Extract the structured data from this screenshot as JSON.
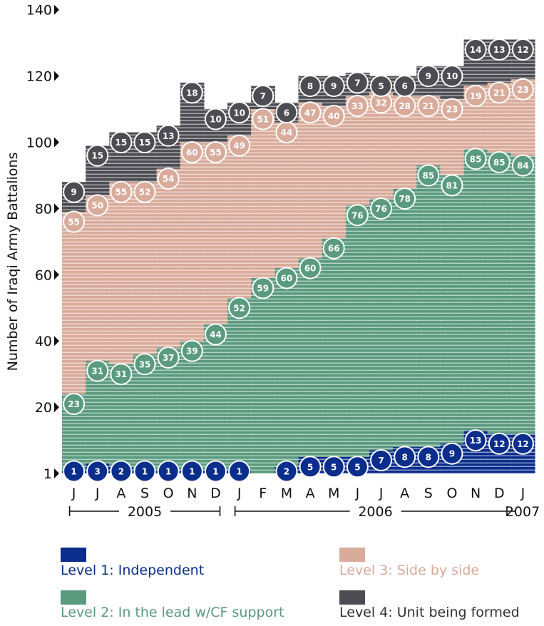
{
  "chart_data": {
    "type": "bar",
    "stacked": true,
    "title": "",
    "ylabel": "Number of Iraqi Army Battalions",
    "ylim": [
      0,
      140
    ],
    "yticks": [
      "1",
      "20",
      "40",
      "60",
      "80",
      "100",
      "120",
      "140"
    ],
    "categories": [
      "J",
      "J",
      "A",
      "S",
      "O",
      "N",
      "D",
      "J",
      "F",
      "M",
      "A",
      "M",
      "J",
      "J",
      "A",
      "S",
      "O",
      "N",
      "D",
      "J"
    ],
    "year_labels": [
      "2005",
      "2006",
      "2007"
    ],
    "series": [
      {
        "name": "Level 1: Independent",
        "color": "#0b2e8c",
        "values": [
          1,
          3,
          2,
          1,
          1,
          1,
          1,
          1,
          0,
          2,
          5,
          5,
          5,
          7,
          8,
          8,
          9,
          13,
          12,
          12
        ],
        "labels": [
          "1",
          "3",
          "2",
          "1",
          "1",
          "1",
          "1",
          "1",
          "",
          "2",
          "5",
          "5",
          "5",
          "7",
          "8",
          "8",
          "9",
          "13",
          "12",
          "12"
        ]
      },
      {
        "name": "Level 2: In the lead w/CF support",
        "color": "#5a9a7f",
        "values": [
          23,
          31,
          31,
          35,
          37,
          39,
          44,
          52,
          59,
          60,
          60,
          66,
          76,
          76,
          78,
          85,
          81,
          85,
          85,
          84
        ],
        "labels": [
          "23",
          "31",
          "31",
          "35",
          "37",
          "39",
          "44",
          "52",
          "59",
          "60",
          "60",
          "66",
          "76",
          "76",
          "78",
          "85",
          "81",
          "85",
          "85",
          "84"
        ]
      },
      {
        "name": "Level 3: Side by side",
        "color": "#d9ab9b",
        "values": [
          55,
          50,
          55,
          52,
          54,
          60,
          55,
          49,
          51,
          44,
          47,
          40,
          33,
          32,
          28,
          21,
          23,
          19,
          21,
          23
        ],
        "labels": [
          "55",
          "50",
          "55",
          "52",
          "54",
          "60",
          "55",
          "49",
          "51",
          "44",
          "47",
          "40",
          "33",
          "32",
          "28",
          "21",
          "23",
          "19",
          "21",
          "23"
        ]
      },
      {
        "name": "Level 4: Unit being formed",
        "color": "#4c4c52",
        "values": [
          9,
          15,
          15,
          15,
          13,
          18,
          10,
          10,
          7,
          6,
          8,
          9,
          7,
          5,
          6,
          9,
          10,
          14,
          13,
          12
        ],
        "labels": [
          "9",
          "15",
          "15",
          "15",
          "13",
          "18",
          "10",
          "10",
          "7",
          "6",
          "8",
          "9",
          "7",
          "5",
          "6",
          "9",
          "10",
          "14",
          "13",
          "12"
        ]
      }
    ]
  }
}
